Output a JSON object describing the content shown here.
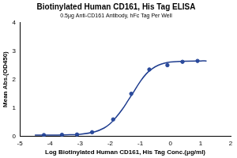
{
  "chart_data": {
    "type": "scatter",
    "title": "Biotinylated Human CD161, His Tag ELISA",
    "subtitle": "0.5μg Anti-CD161 Antibody, hFc Tag Per Well",
    "x_label": "Log Biotinylated Human CD161, His Tag Conc.(μg/ml)",
    "y_label": "Mean Abs.(OD450)",
    "xlim": [
      -5,
      2
    ],
    "xticks": [
      -5,
      -4,
      -3,
      -2,
      -1,
      0,
      1,
      2
    ],
    "ylim": [
      0,
      4
    ],
    "yticks": [
      0,
      1,
      2,
      3,
      4
    ],
    "grid": false,
    "series": [
      {
        "type": "scatter",
        "marker": "circle",
        "color": "#2a4a9c",
        "x": [
          -4.2,
          -3.6,
          -3.1,
          -2.6,
          -1.9,
          -1.3,
          -0.7,
          -0.1,
          0.4,
          0.9
        ],
        "values": [
          0.05,
          0.06,
          0.07,
          0.15,
          0.6,
          1.5,
          2.35,
          2.5,
          2.62,
          2.65
        ]
      },
      {
        "type": "line",
        "line_style": "solid",
        "color": "#1f3d8f",
        "x": [
          -4.5,
          -4,
          -3.5,
          -3,
          -2.5,
          -2.2,
          -2,
          -1.8,
          -1.6,
          -1.4,
          -1.2,
          -1,
          -0.8,
          -0.6,
          -0.4,
          -0.2,
          0,
          0.5,
          1,
          1.2
        ],
        "values": [
          0.05,
          0.05,
          0.06,
          0.08,
          0.17,
          0.3,
          0.45,
          0.68,
          0.95,
          1.27,
          1.6,
          1.93,
          2.2,
          2.38,
          2.5,
          2.57,
          2.61,
          2.64,
          2.65,
          2.65
        ]
      }
    ]
  }
}
